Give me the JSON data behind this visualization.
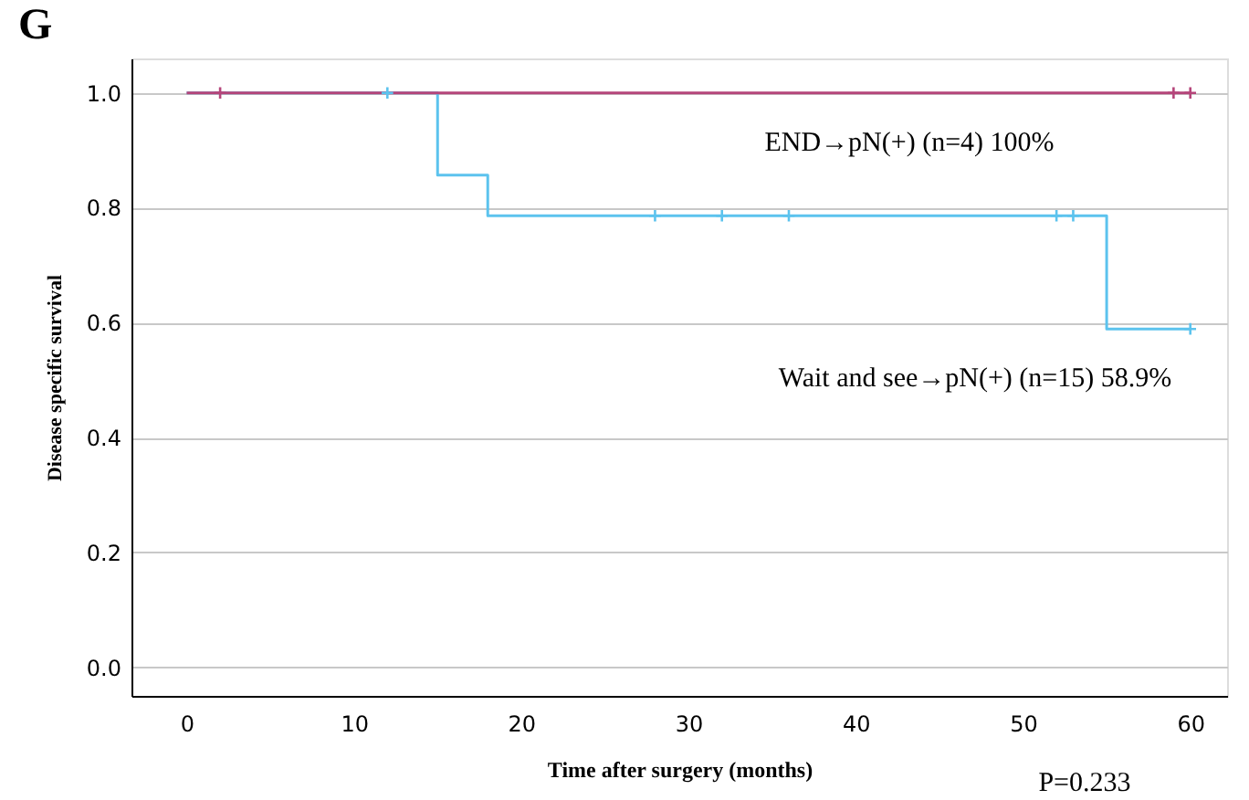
{
  "chart_data": {
    "type": "step",
    "title": "G",
    "xlabel": "Time after surgery (months)",
    "ylabel": "Disease specific survival",
    "series": [
      {
        "color": "#5cc3ee",
        "x": [
          0,
          15,
          18,
          55,
          60
        ],
        "values": [
          1.0,
          0.857,
          0.786,
          0.589,
          0.589
        ]
      },
      {
        "color": "#b5457a",
        "x": [
          0,
          60
        ],
        "values": [
          1.0,
          1.0
        ]
      },
      {
        "type": "scatter",
        "marker": "cross",
        "color": "#b5457a",
        "x": [
          2,
          59,
          60
        ],
        "values": [
          1.0,
          1.0,
          1.0
        ]
      },
      {
        "type": "scatter",
        "marker": "cross",
        "color": "#5cc3ee",
        "x": [
          12,
          28,
          32,
          36,
          52,
          53,
          60
        ],
        "values": [
          1.0,
          0.786,
          0.786,
          0.786,
          0.786,
          0.786,
          0.589
        ]
      }
    ],
    "xlim": [
      -3.3,
      62.2
    ],
    "ylim": [
      -0.05,
      1.06
    ],
    "xticks": [
      0,
      10,
      20,
      30,
      40,
      50,
      60
    ],
    "yticks": [
      {
        "value": 0,
        "label": "0.0"
      },
      0.2,
      0.4,
      0.6,
      0.8,
      {
        "value": 1,
        "label": "1.0"
      }
    ],
    "grid": "y",
    "marker": "none",
    "line_style": "solid",
    "annotations": [
      "END→pN(+) (n=4) 100%",
      "Wait and see→pN(+) (n=15) 58.9%",
      "P=0.233"
    ]
  }
}
